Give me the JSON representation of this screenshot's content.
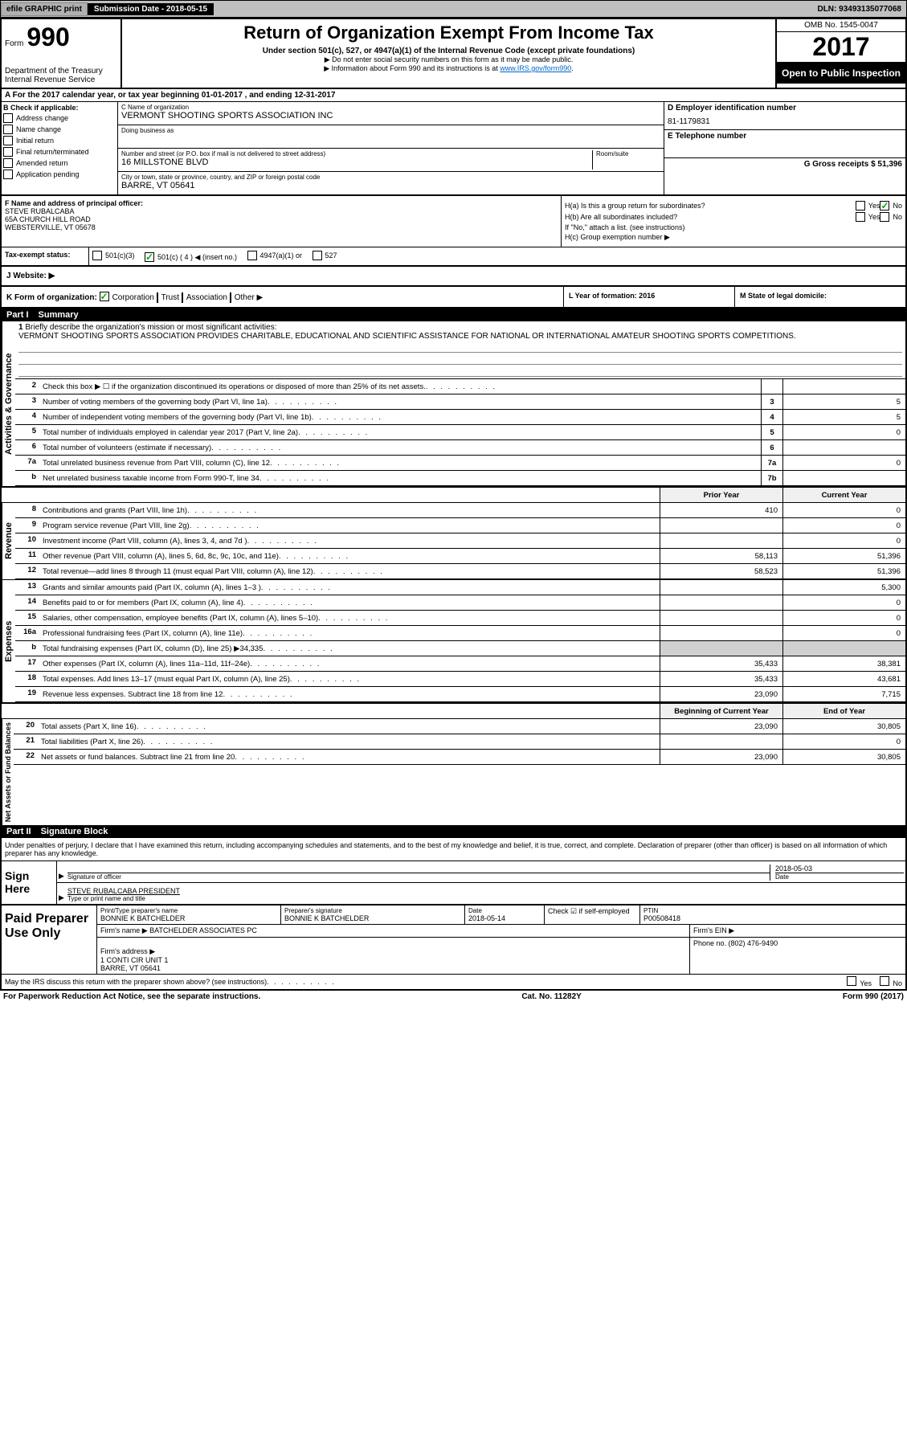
{
  "topbar": {
    "efile": "efile GRAPHIC print",
    "sub_date_label": "Submission Date - 2018-05-15",
    "dln": "DLN: 93493135077068"
  },
  "header": {
    "form_label": "Form",
    "form_num": "990",
    "dept": "Department of the Treasury\nInternal Revenue Service",
    "title": "Return of Organization Exempt From Income Tax",
    "subtitle": "Under section 501(c), 527, or 4947(a)(1) of the Internal Revenue Code (except private foundations)",
    "note1": "▶ Do not enter social security numbers on this form as it may be made public.",
    "note2_pre": "▶ Information about Form 990 and its instructions is at ",
    "note2_link": "www.IRS.gov/form990",
    "omb": "OMB No. 1545-0047",
    "year": "2017",
    "open": "Open to Public Inspection"
  },
  "row_a": "A For the 2017 calendar year, or tax year beginning 01-01-2017   , and ending 12-31-2017",
  "col_b": {
    "label": "B Check if applicable:",
    "items": [
      "Address change",
      "Name change",
      "Initial return",
      "Final return/terminated",
      "Amended return",
      "Application pending"
    ]
  },
  "col_c": {
    "name_label": "C Name of organization",
    "name": "VERMONT SHOOTING SPORTS ASSOCIATION INC",
    "dba_label": "Doing business as",
    "dba": "",
    "addr_label": "Number and street (or P.O. box if mail is not delivered to street address)",
    "addr": "16 MILLSTONE BLVD",
    "room_label": "Room/suite",
    "city_label": "City or town, state or province, country, and ZIP or foreign postal code",
    "city": "BARRE, VT  05641"
  },
  "col_d": {
    "label": "D Employer identification number",
    "val": "81-1179831"
  },
  "col_e": {
    "label": "E Telephone number",
    "val": ""
  },
  "col_g": {
    "label": "G Gross receipts $ 51,396"
  },
  "col_f": {
    "label": "F  Name and address of principal officer:",
    "name": "STEVE RUBALCABA",
    "addr1": "65A CHURCH HILL ROAD",
    "addr2": "WEBSTERVILLE, VT  05678"
  },
  "col_h": {
    "ha": "H(a)  Is this a group return for subordinates?",
    "hb": "H(b)  Are all subordinates included?",
    "hb_note": "If \"No,\" attach a list. (see instructions)",
    "hc": "H(c)  Group exemption number ▶",
    "yes": "Yes",
    "no": "No"
  },
  "tax_status": {
    "label": "Tax-exempt status:",
    "opt1": "501(c)(3)",
    "opt2": "501(c) ( 4 ) ◀ (insert no.)",
    "opt3": "4947(a)(1) or",
    "opt4": "527"
  },
  "website": {
    "label": "J   Website: ▶"
  },
  "row_k": {
    "label": "K Form of organization:",
    "opts": [
      "Corporation",
      "Trust",
      "Association",
      "Other ▶"
    ],
    "l": "L Year of formation: 2016",
    "m": "M State of legal domicile:"
  },
  "part1": {
    "label": "Part I",
    "title": "Summary"
  },
  "mission": {
    "num": "1",
    "prompt": "Briefly describe the organization's mission or most significant activities:",
    "text": "VERMONT SHOOTING SPORTS ASSOCIATION PROVIDES CHARITABLE, EDUCATIONAL AND SCIENTIFIC ASSISTANCE FOR NATIONAL OR INTERNATIONAL AMATEUR SHOOTING SPORTS COMPETITIONS."
  },
  "gov_rows": [
    {
      "n": "2",
      "d": "Check this box ▶ ☐ if the organization discontinued its operations or disposed of more than 25% of its net assets.",
      "box": "",
      "v": ""
    },
    {
      "n": "3",
      "d": "Number of voting members of the governing body (Part VI, line 1a)",
      "box": "3",
      "v": "5"
    },
    {
      "n": "4",
      "d": "Number of independent voting members of the governing body (Part VI, line 1b)",
      "box": "4",
      "v": "5"
    },
    {
      "n": "5",
      "d": "Total number of individuals employed in calendar year 2017 (Part V, line 2a)",
      "box": "5",
      "v": "0"
    },
    {
      "n": "6",
      "d": "Total number of volunteers (estimate if necessary)",
      "box": "6",
      "v": ""
    },
    {
      "n": "7a",
      "d": "Total unrelated business revenue from Part VIII, column (C), line 12",
      "box": "7a",
      "v": "0"
    },
    {
      "n": "b",
      "d": "Net unrelated business taxable income from Form 990-T, line 34",
      "box": "7b",
      "v": ""
    }
  ],
  "py_cy_header": {
    "py": "Prior Year",
    "cy": "Current Year"
  },
  "rev_rows": [
    {
      "n": "8",
      "d": "Contributions and grants (Part VIII, line 1h)",
      "py": "410",
      "cy": "0"
    },
    {
      "n": "9",
      "d": "Program service revenue (Part VIII, line 2g)",
      "py": "",
      "cy": "0"
    },
    {
      "n": "10",
      "d": "Investment income (Part VIII, column (A), lines 3, 4, and 7d )",
      "py": "",
      "cy": "0"
    },
    {
      "n": "11",
      "d": "Other revenue (Part VIII, column (A), lines 5, 6d, 8c, 9c, 10c, and 11e)",
      "py": "58,113",
      "cy": "51,396"
    },
    {
      "n": "12",
      "d": "Total revenue—add lines 8 through 11 (must equal Part VIII, column (A), line 12)",
      "py": "58,523",
      "cy": "51,396"
    }
  ],
  "exp_rows": [
    {
      "n": "13",
      "d": "Grants and similar amounts paid (Part IX, column (A), lines 1–3 )",
      "py": "",
      "cy": "5,300"
    },
    {
      "n": "14",
      "d": "Benefits paid to or for members (Part IX, column (A), line 4)",
      "py": "",
      "cy": "0"
    },
    {
      "n": "15",
      "d": "Salaries, other compensation, employee benefits (Part IX, column (A), lines 5–10)",
      "py": "",
      "cy": "0"
    },
    {
      "n": "16a",
      "d": "Professional fundraising fees (Part IX, column (A), line 11e)",
      "py": "",
      "cy": "0"
    },
    {
      "n": "b",
      "d": "Total fundraising expenses (Part IX, column (D), line 25) ▶34,335",
      "py": "grey",
      "cy": "grey"
    },
    {
      "n": "17",
      "d": "Other expenses (Part IX, column (A), lines 11a–11d, 11f–24e)",
      "py": "35,433",
      "cy": "38,381"
    },
    {
      "n": "18",
      "d": "Total expenses. Add lines 13–17 (must equal Part IX, column (A), line 25)",
      "py": "35,433",
      "cy": "43,681"
    },
    {
      "n": "19",
      "d": "Revenue less expenses. Subtract line 18 from line 12",
      "py": "23,090",
      "cy": "7,715"
    }
  ],
  "net_header": {
    "b": "Beginning of Current Year",
    "e": "End of Year"
  },
  "net_rows": [
    {
      "n": "20",
      "d": "Total assets (Part X, line 16)",
      "py": "23,090",
      "cy": "30,805"
    },
    {
      "n": "21",
      "d": "Total liabilities (Part X, line 26)",
      "py": "",
      "cy": "0"
    },
    {
      "n": "22",
      "d": "Net assets or fund balances. Subtract line 21 from line 20",
      "py": "23,090",
      "cy": "30,805"
    }
  ],
  "vert": {
    "gov": "Activities & Governance",
    "rev": "Revenue",
    "exp": "Expenses",
    "net": "Net Assets or Fund Balances"
  },
  "part2": {
    "label": "Part II",
    "title": "Signature Block"
  },
  "sig": {
    "intro": "Under penalties of perjury, I declare that I have examined this return, including accompanying schedules and statements, and to the best of my knowledge and belief, it is true, correct, and complete. Declaration of preparer (other than officer) is based on all information of which preparer has any knowledge.",
    "sign_here": "Sign Here",
    "sig_officer_label": "Signature of officer",
    "date_label": "Date",
    "date": "2018-05-03",
    "officer_name": "STEVE RUBALCABA  PRESIDENT",
    "type_label": "Type or print name and title"
  },
  "paid": {
    "label": "Paid Preparer Use Only",
    "name_label": "Print/Type preparer's name",
    "name": "BONNIE K BATCHELDER",
    "sig_label": "Preparer's signature",
    "sig": "BONNIE K BATCHELDER",
    "date_label": "Date",
    "date": "2018-05-14",
    "check_label": "Check ☑ if self-employed",
    "ptin_label": "PTIN",
    "ptin": "P00508418",
    "firm_name_label": "Firm's name    ▶",
    "firm_name": "BATCHELDER ASSOCIATES PC",
    "firm_ein_label": "Firm's EIN ▶",
    "firm_addr_label": "Firm's address ▶",
    "firm_addr": "1 CONTI CIR UNIT 1\nBARRE, VT  05641",
    "phone_label": "Phone no. (802) 476-9490"
  },
  "footer": {
    "discuss": "May the IRS discuss this return with the preparer shown above? (see instructions)",
    "yes": "Yes",
    "no": "No",
    "paperwork": "For Paperwork Reduction Act Notice, see the separate instructions.",
    "cat": "Cat. No. 11282Y",
    "form": "Form 990 (2017)"
  }
}
